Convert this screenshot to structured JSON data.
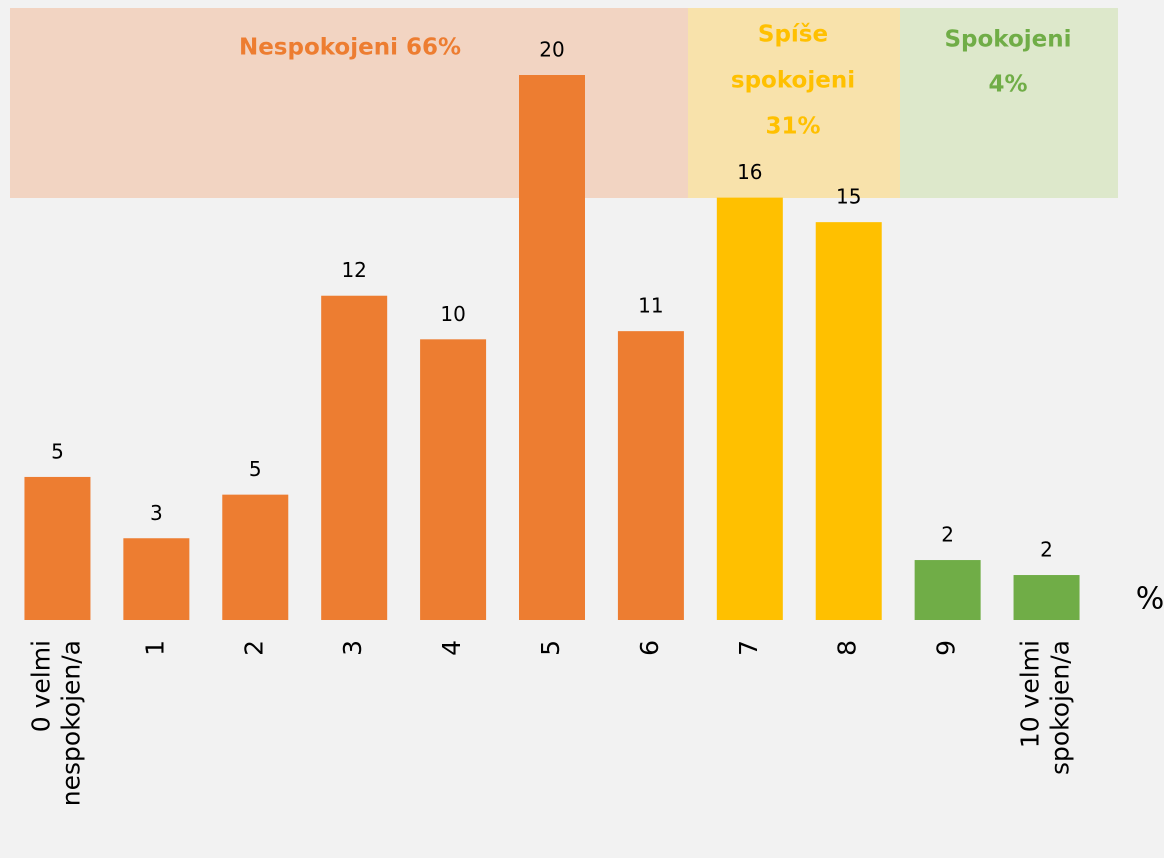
{
  "chart_data": {
    "type": "bar",
    "categories": [
      [
        "0 velmi",
        "nespokojen/a"
      ],
      "1",
      "2",
      "3",
      "4",
      "5",
      "6",
      "7",
      "8",
      "9",
      [
        "10 velmi",
        "spokojen/a"
      ]
    ],
    "values": [
      5.25,
      3.0,
      4.6,
      11.9,
      10.3,
      20,
      10.6,
      15.5,
      14.6,
      2.2,
      1.65
    ],
    "value_labels": [
      "5",
      "3",
      "5",
      "12",
      "10",
      "20",
      "11",
      "16",
      "15",
      "2",
      "2"
    ],
    "colors": [
      "#ed7d31",
      "#ed7d31",
      "#ed7d31",
      "#ed7d31",
      "#ed7d31",
      "#ed7d31",
      "#ed7d31",
      "#ffc000",
      "#ffc000",
      "#70ad47",
      "#70ad47"
    ],
    "ylim": [
      0,
      20
    ],
    "unit": "%",
    "groups": [
      {
        "lines": [
          "Nespokojeni 66%"
        ],
        "color": "#ed7d31",
        "background": "#f2d4c2"
      },
      {
        "lines": [
          "Spíše",
          "spokojeni",
          "31%"
        ],
        "color": "#ffc000",
        "background": "#f8e2ab"
      },
      {
        "lines": [
          "Spokojeni",
          "4%"
        ],
        "color": "#70ad47",
        "background": "#dde8cb"
      }
    ]
  }
}
